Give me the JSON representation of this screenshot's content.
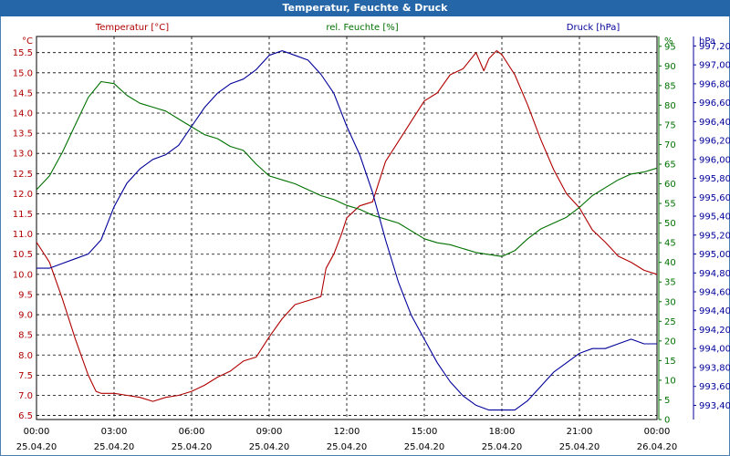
{
  "window": {
    "title": "Temperatur, Feuchte & Druck"
  },
  "chart_data": {
    "type": "line",
    "title": "Temperatur, Feuchte & Druck",
    "grid": true,
    "colors": {
      "temperature": "#b00000",
      "humidity": "#007000",
      "pressure": "#00009a",
      "grid": "#000000",
      "frame": "#2566a8"
    },
    "axes": {
      "left": {
        "label": "Temperatur [°C]",
        "unit": "°C",
        "ylim": [
          6.4,
          15.9
        ],
        "ticks": [
          "6.5",
          "7.0",
          "7.5",
          "8.0",
          "8.5",
          "9.0",
          "9.5",
          "10.0",
          "10.5",
          "11.0",
          "11.5",
          "12.0",
          "12.5",
          "13.0",
          "13.5",
          "14.0",
          "14.5",
          "15.0",
          "15.5"
        ]
      },
      "right1": {
        "label": "rel. Feuchte [%]",
        "unit": "%",
        "ylim": [
          0,
          97.5
        ],
        "ticks": [
          "0",
          "5",
          "10",
          "15",
          "20",
          "25",
          "30",
          "35",
          "40",
          "45",
          "50",
          "55",
          "60",
          "65",
          "70",
          "75",
          "80",
          "85",
          "90",
          "95"
        ]
      },
      "right2": {
        "label": "Druck [hPa]",
        "unit": "hPa",
        "ylim": [
          993.25,
          997.3
        ],
        "ticks": [
          "993,40",
          "993,60",
          "993,80",
          "994,00",
          "994,20",
          "994,40",
          "994,60",
          "994,80",
          "995,00",
          "995,20",
          "995,40",
          "995,60",
          "995,80",
          "996,00",
          "996,20",
          "996,40",
          "996,60",
          "996,80",
          "997,00",
          "997,20"
        ]
      }
    },
    "x": {
      "ticks": [
        {
          "time": "00:00",
          "date": "25.04.20"
        },
        {
          "time": "03:00",
          "date": "25.04.20"
        },
        {
          "time": "06:00",
          "date": "25.04.20"
        },
        {
          "time": "09:00",
          "date": "25.04.20"
        },
        {
          "time": "12:00",
          "date": "25.04.20"
        },
        {
          "time": "15:00",
          "date": "25.04.20"
        },
        {
          "time": "18:00",
          "date": "25.04.20"
        },
        {
          "time": "21:00",
          "date": "25.04.20"
        },
        {
          "time": "00:00",
          "date": "26.04.20"
        }
      ],
      "xlim_hours": [
        0,
        24
      ]
    },
    "series": [
      {
        "name": "Temperatur [°C]",
        "axis": "left",
        "color": "#b00000",
        "x": [
          0,
          0.5,
          1,
          1.5,
          2,
          2.3,
          2.5,
          3,
          3.5,
          4,
          4.5,
          5,
          5.5,
          6,
          6.5,
          7,
          7.5,
          8,
          8.5,
          9,
          9.5,
          10,
          10.5,
          11,
          11.2,
          11.5,
          11.8,
          12,
          12.5,
          13,
          13.5,
          14,
          14.5,
          15,
          15.5,
          16,
          16.5,
          17,
          17.3,
          17.5,
          17.8,
          18,
          18.5,
          19,
          19.5,
          20,
          20.5,
          21,
          21.5,
          22,
          22.5,
          23,
          23.5,
          24
        ],
        "values": [
          10.8,
          10.3,
          9.4,
          8.4,
          7.5,
          7.1,
          7.05,
          7.05,
          7.0,
          6.95,
          6.85,
          6.95,
          7.0,
          7.1,
          7.25,
          7.45,
          7.6,
          7.85,
          7.95,
          8.45,
          8.9,
          9.25,
          9.35,
          9.45,
          10.15,
          10.5,
          11.0,
          11.4,
          11.7,
          11.8,
          12.8,
          13.3,
          13.8,
          14.3,
          14.5,
          14.95,
          15.1,
          15.5,
          15.05,
          15.35,
          15.55,
          15.45,
          14.95,
          14.2,
          13.35,
          12.6,
          12.0,
          11.65,
          11.1,
          10.8,
          10.45,
          10.3,
          10.1,
          10.0
        ]
      },
      {
        "name": "rel. Feuchte [%]",
        "axis": "right1",
        "color": "#007000",
        "x": [
          0,
          0.5,
          1,
          1.5,
          2,
          2.5,
          3,
          3.5,
          4,
          4.5,
          5,
          5.5,
          6,
          6.5,
          7,
          7.5,
          8,
          8.5,
          9,
          9.5,
          10,
          10.5,
          11,
          11.5,
          12,
          12.5,
          13,
          13.5,
          14,
          14.5,
          15,
          15.5,
          16,
          16.5,
          17,
          17.5,
          18,
          18.5,
          19,
          19.5,
          20,
          20.5,
          21,
          21.5,
          22,
          22.5,
          23,
          23.5,
          24
        ],
        "values": [
          58.5,
          62,
          68,
          75,
          82,
          86,
          85.5,
          82.5,
          80.5,
          79.5,
          78.5,
          76.5,
          74.5,
          72.5,
          71.5,
          69.5,
          68.5,
          65,
          62,
          61,
          60,
          58.5,
          57,
          56,
          54.5,
          53.5,
          52,
          51,
          50,
          48,
          46,
          45,
          44.5,
          43.5,
          42.5,
          42,
          41.5,
          43,
          46,
          48.5,
          50,
          51.5,
          54,
          57,
          59,
          61,
          62.5,
          63,
          64
        ]
      },
      {
        "name": "Druck [hPa]",
        "axis": "right2",
        "color": "#00009a",
        "x": [
          0,
          0.5,
          1,
          1.5,
          2,
          2.5,
          3,
          3.5,
          4,
          4.5,
          5,
          5.5,
          6,
          6.5,
          7,
          7.5,
          8,
          8.5,
          9,
          9.5,
          10,
          10.5,
          11,
          11.5,
          12,
          12.5,
          13,
          13.5,
          14,
          14.5,
          15,
          15.5,
          16,
          16.5,
          17,
          17.5,
          18,
          18.5,
          19,
          19.5,
          20,
          20.5,
          21,
          21.5,
          22,
          22.5,
          23,
          23.5,
          24
        ],
        "values": [
          994.85,
          994.85,
          994.9,
          994.95,
          995.0,
          995.15,
          995.5,
          995.75,
          995.9,
          996.0,
          996.05,
          996.15,
          996.35,
          996.55,
          996.7,
          996.8,
          996.85,
          996.95,
          997.1,
          997.15,
          997.1,
          997.05,
          996.9,
          996.7,
          996.35,
          996.05,
          995.65,
          995.15,
          994.7,
          994.35,
          994.1,
          993.85,
          993.65,
          993.5,
          993.4,
          993.35,
          993.35,
          993.35,
          993.45,
          993.6,
          993.75,
          993.85,
          993.95,
          994.0,
          994.0,
          994.05,
          994.1,
          994.05,
          994.05
        ]
      }
    ]
  }
}
